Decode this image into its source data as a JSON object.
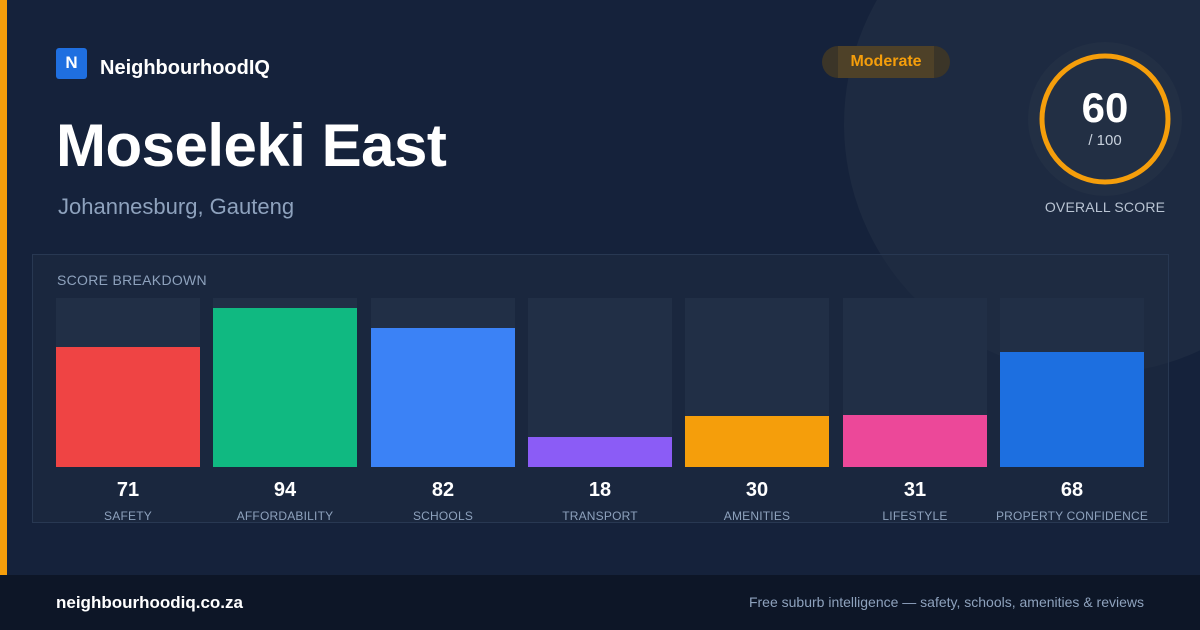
{
  "brand": {
    "logo_letter": "N",
    "name": "NeighbourhoodIQ"
  },
  "suburb": {
    "name": "Moseleki East",
    "location": "Johannesburg, Gauteng"
  },
  "rating": {
    "label": "Moderate",
    "color": "#f59e0b"
  },
  "overall": {
    "score": "60",
    "denominator": "/ 100",
    "label": "OVERALL SCORE",
    "fraction": 0.6
  },
  "breakdown": {
    "title": "SCORE BREAKDOWN",
    "max": 100,
    "items": [
      {
        "label": "SAFETY",
        "value": "71",
        "score": 71,
        "color": "#ef4444"
      },
      {
        "label": "AFFORDABILITY",
        "value": "94",
        "score": 94,
        "color": "#10b981"
      },
      {
        "label": "SCHOOLS",
        "value": "82",
        "score": 82,
        "color": "#3b82f6"
      },
      {
        "label": "TRANSPORT",
        "value": "18",
        "score": 18,
        "color": "#8b5cf6"
      },
      {
        "label": "AMENITIES",
        "value": "30",
        "score": 30,
        "color": "#f59e0b"
      },
      {
        "label": "LIFESTYLE",
        "value": "31",
        "score": 31,
        "color": "#ec4899"
      },
      {
        "label": "PROPERTY CONFIDENCE",
        "value": "68",
        "score": 68,
        "color": "#1d6fe0"
      }
    ]
  },
  "footer": {
    "url": "neighbourhoodiq.co.za",
    "tagline": "Free suburb intelligence — safety, schools, amenities & reviews"
  }
}
